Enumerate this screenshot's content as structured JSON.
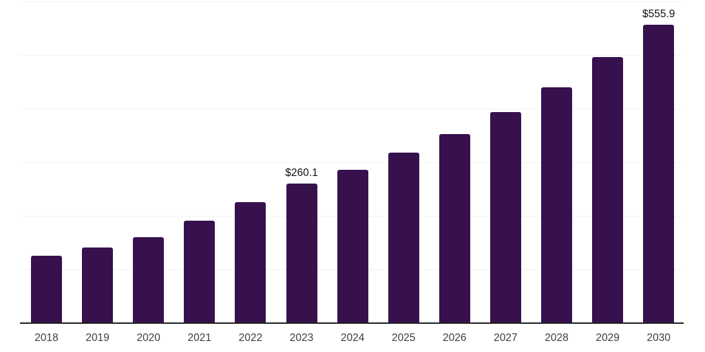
{
  "chart_data": {
    "type": "bar",
    "title": "",
    "xlabel": "",
    "ylabel": "",
    "categories": [
      "2018",
      "2019",
      "2020",
      "2021",
      "2022",
      "2023",
      "2024",
      "2025",
      "2026",
      "2027",
      "2028",
      "2029",
      "2030"
    ],
    "values": [
      124.5,
      140.5,
      159.5,
      190.5,
      225.0,
      260.1,
      286.0,
      317.5,
      352.0,
      393.0,
      440.0,
      496.0,
      555.9
    ],
    "data_labels": {
      "2023": "$260.1",
      "2030": "$555.9"
    },
    "ylim": [
      0,
      600
    ],
    "gridline_values": [
      100,
      200,
      300,
      400,
      500,
      600
    ],
    "grid": "horizontal, unlabeled y-axis",
    "legend": "none",
    "colors": {
      "bar_fill": "#36114E",
      "axis_line": "#222222",
      "gridline": "#f2f2f2",
      "tick_label": "#3d3d3d",
      "data_label": "#111111",
      "background": "#ffffff"
    }
  }
}
